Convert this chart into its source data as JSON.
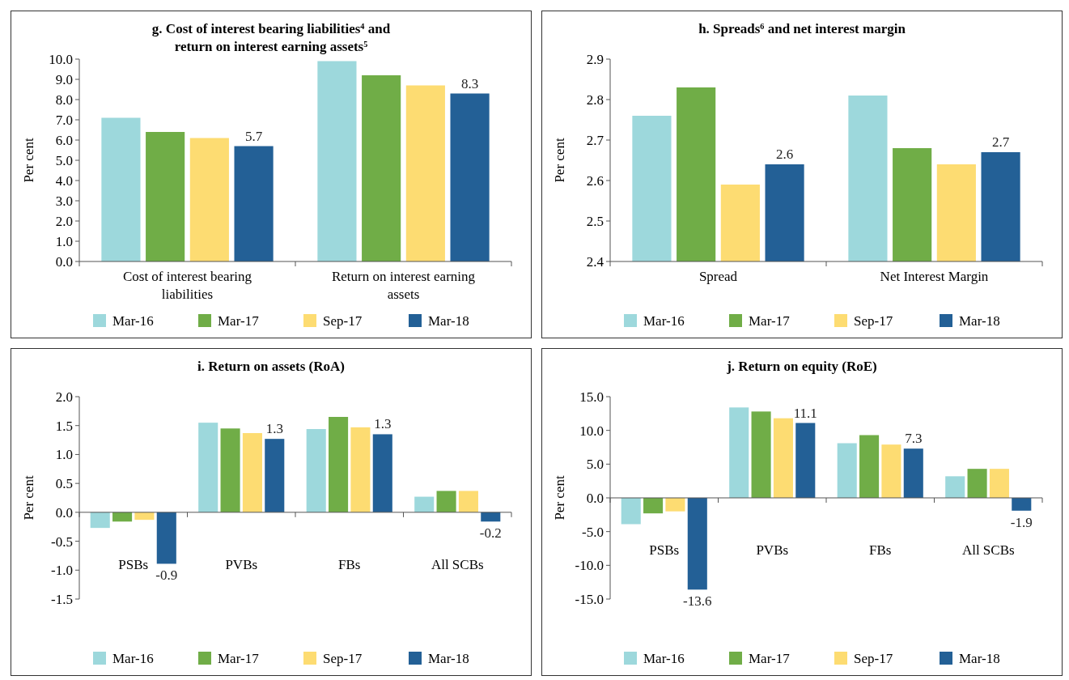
{
  "chart_data": [
    {
      "type": "bar",
      "title": "g. Cost of interest bearing liabilities$^{4}$ and return on interest earning assets$^{5}$",
      "ylabel": "Per cent",
      "categories": [
        "Cost of interest bearing liabilities",
        "Return on interest earning assets"
      ],
      "series": [
        {
          "name": "Mar-16",
          "color": "#9dd8dc",
          "values": [
            7.1,
            9.9
          ]
        },
        {
          "name": "Mar-17",
          "color": "#70ad47",
          "values": [
            6.4,
            9.2
          ]
        },
        {
          "name": "Sep-17",
          "color": "#fddc72",
          "values": [
            6.1,
            8.7
          ]
        },
        {
          "name": "Mar-18",
          "color": "#236096",
          "values": [
            5.7,
            8.3
          ],
          "value_labels": [
            "5.7",
            "8.3"
          ]
        }
      ],
      "ylim": [
        0,
        10
      ],
      "yticks": [
        {
          "value": 0,
          "label": "0.0"
        },
        {
          "value": 1,
          "label": "1.0"
        },
        {
          "value": 2,
          "label": "2.0"
        },
        {
          "value": 3,
          "label": "3.0"
        },
        {
          "value": 4,
          "label": "4.0"
        },
        {
          "value": 5,
          "label": "5.0"
        },
        {
          "value": 6,
          "label": "6.0"
        },
        {
          "value": 7,
          "label": "7.0"
        },
        {
          "value": 8,
          "label": "8.0"
        },
        {
          "value": 9,
          "label": "9.0"
        },
        {
          "value": 10,
          "label": "10.0"
        }
      ],
      "grid": false,
      "legend": "bottom"
    },
    {
      "type": "bar",
      "title": "h. Spreads$^{6}$ and net interest margin",
      "ylabel": "Per cent",
      "categories": [
        "Spread",
        "Net Interest Margin"
      ],
      "series": [
        {
          "name": "Mar-16",
          "color": "#9dd8dc",
          "values": [
            2.76,
            2.81
          ]
        },
        {
          "name": "Mar-17",
          "color": "#70ad47",
          "values": [
            2.83,
            2.68
          ]
        },
        {
          "name": "Sep-17",
          "color": "#fddc72",
          "values": [
            2.59,
            2.64
          ]
        },
        {
          "name": "Mar-18",
          "color": "#236096",
          "values": [
            2.64,
            2.67
          ],
          "value_labels": [
            "2.6",
            "2.7"
          ]
        }
      ],
      "ylim": [
        2.4,
        2.9
      ],
      "yticks": [
        2.4,
        2.5,
        2.6,
        2.7,
        2.8,
        2.9
      ],
      "grid": false,
      "legend": "bottom"
    },
    {
      "type": "bar",
      "title": "i. Return on assets (RoA)",
      "ylabel": "Per cent",
      "categories": [
        "PSBs",
        "PVBs",
        "FBs",
        "All SCBs"
      ],
      "series": [
        {
          "name": "Mar-16",
          "color": "#9dd8dc",
          "values": [
            -0.27,
            1.55,
            1.44,
            0.27
          ]
        },
        {
          "name": "Mar-17",
          "color": "#70ad47",
          "values": [
            -0.16,
            1.45,
            1.65,
            0.37
          ]
        },
        {
          "name": "Sep-17",
          "color": "#fddc72",
          "values": [
            -0.13,
            1.37,
            1.47,
            0.37
          ]
        },
        {
          "name": "Mar-18",
          "color": "#236096",
          "values": [
            -0.89,
            1.27,
            1.35,
            -0.16
          ],
          "value_labels": [
            "-0.9",
            "1.3",
            "1.3",
            "-0.2"
          ]
        }
      ],
      "ylim": [
        -1.5,
        2.0
      ],
      "yticks": [
        -1.5,
        {
          "value": -1,
          "label": "-1.0"
        },
        -0.5,
        {
          "value": 0,
          "label": "0.0"
        },
        0.5,
        {
          "value": 1,
          "label": "1.0"
        },
        1.5,
        {
          "value": 2,
          "label": "2.0"
        }
      ],
      "legend": "bottom"
    },
    {
      "type": "bar",
      "title": "j. Return on equity (RoE)",
      "ylabel": "Per cent",
      "categories": [
        "PSBs",
        "PVBs",
        "FBs",
        "All SCBs"
      ],
      "series": [
        {
          "name": "Mar-16",
          "color": "#9dd8dc",
          "values": [
            -3.9,
            13.4,
            8.1,
            3.2
          ]
        },
        {
          "name": "Mar-17",
          "color": "#70ad47",
          "values": [
            -2.3,
            12.8,
            9.3,
            4.3
          ]
        },
        {
          "name": "Sep-17",
          "color": "#fddc72",
          "values": [
            -2.0,
            11.8,
            7.9,
            4.3
          ]
        },
        {
          "name": "Mar-18",
          "color": "#236096",
          "values": [
            -13.6,
            11.1,
            7.3,
            -1.9
          ],
          "value_labels": [
            "-13.6",
            "11.1",
            "7.3",
            "-1.9"
          ]
        }
      ],
      "ylim": [
        -15,
        15
      ],
      "yticks": [
        {
          "value": -15,
          "label": "-15.0"
        },
        {
          "value": -10,
          "label": "-10.0"
        },
        {
          "value": -5,
          "label": "-5.0"
        },
        {
          "value": 0,
          "label": "0.0"
        },
        {
          "value": 5,
          "label": "5.0"
        },
        {
          "value": 10,
          "label": "10.0"
        },
        {
          "value": 15,
          "label": "15.0"
        }
      ],
      "legend": "bottom"
    }
  ]
}
